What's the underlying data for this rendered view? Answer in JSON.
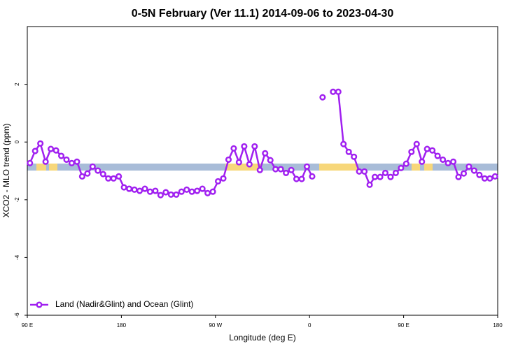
{
  "chart_data": {
    "type": "line",
    "title": "0-5N February (Ver 11.1)   2014-09-06 to 2023-04-30",
    "x_label": "Longitude (deg E)",
    "y_label": "XCO2 - MLO trend (ppm)",
    "xlim": [
      90,
      540
    ],
    "xticks": [
      {
        "value": 90,
        "label": "90 E"
      },
      {
        "value": 180,
        "label": "180"
      },
      {
        "value": 270,
        "label": "90 W"
      },
      {
        "value": 360,
        "label": "0"
      },
      {
        "value": 450,
        "label": "90 E"
      },
      {
        "value": 540,
        "label": "180"
      }
    ],
    "ylim": [
      -6,
      4
    ],
    "yticks": [
      -6,
      -4,
      -2,
      0,
      2
    ],
    "grid": false,
    "legend": "bottom-left",
    "x": [
      92.5,
      97.5,
      102.5,
      107.5,
      112.5,
      117.5,
      122.5,
      127.5,
      132.5,
      137.5,
      142.5,
      147.5,
      152.5,
      157.5,
      162.5,
      167.5,
      172.5,
      177.5,
      182.5,
      187.5,
      192.5,
      197.5,
      202.5,
      207.5,
      212.5,
      217.5,
      222.5,
      227.5,
      232.5,
      237.5,
      242.5,
      247.5,
      252.5,
      257.5,
      262.5,
      267.5,
      272.5,
      277.5,
      282.5,
      287.5,
      292.5,
      297.5,
      302.5,
      307.5,
      312.5,
      317.5,
      322.5,
      327.5,
      332.5,
      337.5,
      342.5,
      347.5,
      352.5,
      357.5,
      362.5,
      367.5,
      372.5,
      377.5,
      382.5,
      387.5,
      392.5,
      397.5,
      402.5,
      407.5,
      412.5,
      417.5,
      422.5,
      427.5,
      432.5,
      437.5,
      442.5,
      447.5,
      452.5,
      457.5,
      462.5,
      467.5,
      472.5,
      477.5,
      482.5,
      487.5,
      492.5,
      497.5,
      502.5,
      507.5,
      512.5,
      517.5,
      522.5,
      527.5,
      532.5,
      537.5
    ],
    "series": [
      {
        "name": "Land (Nadir&Glint) and Ocean (Glint)",
        "color": "#a020f0",
        "values": [
          -0.73,
          -0.31,
          -0.05,
          -0.68,
          -0.24,
          -0.29,
          -0.48,
          -0.61,
          -0.73,
          -0.68,
          -1.19,
          -1.09,
          -0.85,
          -0.99,
          -1.11,
          -1.26,
          -1.26,
          -1.19,
          -1.57,
          -1.62,
          -1.65,
          -1.69,
          -1.62,
          -1.72,
          -1.69,
          -1.84,
          -1.74,
          -1.82,
          -1.82,
          -1.72,
          -1.65,
          -1.72,
          -1.69,
          -1.62,
          -1.77,
          -1.72,
          -1.36,
          -1.26,
          -0.61,
          -0.22,
          -0.7,
          -0.15,
          -0.77,
          -0.15,
          -0.97,
          -0.39,
          -0.63,
          -0.94,
          -0.94,
          -1.07,
          -0.97,
          -1.28,
          -1.28,
          -0.85,
          -1.19,
          null,
          1.55,
          null,
          1.74,
          1.74,
          -0.07,
          -0.34,
          -0.51,
          -1.02,
          -1.02,
          -1.48,
          -1.21,
          -1.21,
          -1.07,
          -1.21,
          -1.07,
          -0.9,
          -0.75,
          -0.34,
          -0.07,
          -0.68,
          -0.24,
          -0.29,
          -0.48,
          -0.61,
          -0.73,
          -0.68,
          -1.21,
          -1.09,
          -0.85,
          -0.99,
          -1.14,
          -1.26,
          -1.26,
          -1.19
        ]
      }
    ]
  }
}
